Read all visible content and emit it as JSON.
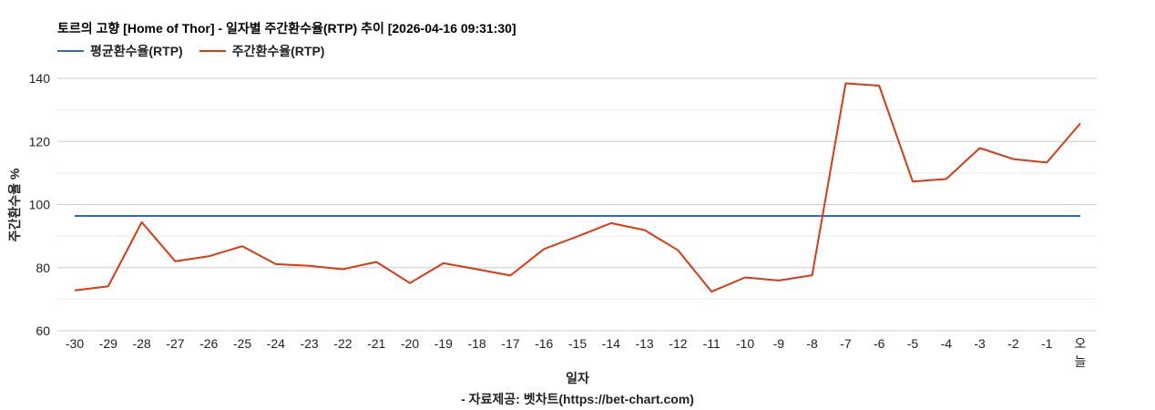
{
  "title": "토르의 고향 [Home of Thor] - 일자별 주간환수율(RTP) 추이 [2026-04-16 09:31:30]",
  "legend": [
    {
      "label": "평균환수율(RTP)",
      "color": "#3366cc"
    },
    {
      "label": "주간환수율(RTP)",
      "color": "#dc3912"
    }
  ],
  "axis": {
    "ylabel": "주간환수율 %",
    "xlabel": "일자"
  },
  "credit": "- 자료제공: 벳차트(https://bet-chart.com)",
  "chart_data": {
    "type": "line",
    "title": "토르의 고향 [Home of Thor] - 일자별 주간환수율(RTP) 추이 [2026-04-16 09:31:30]",
    "xlabel": "일자",
    "ylabel": "주간환수율 %",
    "ylim": [
      60,
      140
    ],
    "yticks": [
      60,
      80,
      100,
      120,
      140
    ],
    "minor_gridlines": [
      70,
      90,
      110,
      130
    ],
    "grid": true,
    "legend_position": "top",
    "categories": [
      "-30",
      "-29",
      "-28",
      "-27",
      "-26",
      "-25",
      "-24",
      "-23",
      "-22",
      "-21",
      "-20",
      "-19",
      "-18",
      "-17",
      "-16",
      "-15",
      "-14",
      "-13",
      "-12",
      "-11",
      "-10",
      "-9",
      "-8",
      "-7",
      "-6",
      "-5",
      "-4",
      "-3",
      "-2",
      "-1",
      "오늘"
    ],
    "series": [
      {
        "name": "평균환수율(RTP)",
        "color": "#3366cc",
        "values": [
          96.4,
          96.4,
          96.4,
          96.4,
          96.4,
          96.4,
          96.4,
          96.4,
          96.4,
          96.4,
          96.4,
          96.4,
          96.4,
          96.4,
          96.4,
          96.4,
          96.4,
          96.4,
          96.4,
          96.4,
          96.4,
          96.4,
          96.4,
          96.4,
          96.4,
          96.4,
          96.4,
          96.4,
          96.4,
          96.4,
          96.4
        ]
      },
      {
        "name": "주간환수율(RTP)",
        "color": "#dc3912",
        "values": [
          72.8,
          74.1,
          94.4,
          82.0,
          83.6,
          86.8,
          81.1,
          80.6,
          79.5,
          81.8,
          75.1,
          81.4,
          79.5,
          77.5,
          85.9,
          89.9,
          94.1,
          91.9,
          85.5,
          72.4,
          76.9,
          75.9,
          77.6,
          138.4,
          137.7,
          107.3,
          108.1,
          117.9,
          114.4,
          113.3,
          125.7
        ]
      }
    ]
  }
}
